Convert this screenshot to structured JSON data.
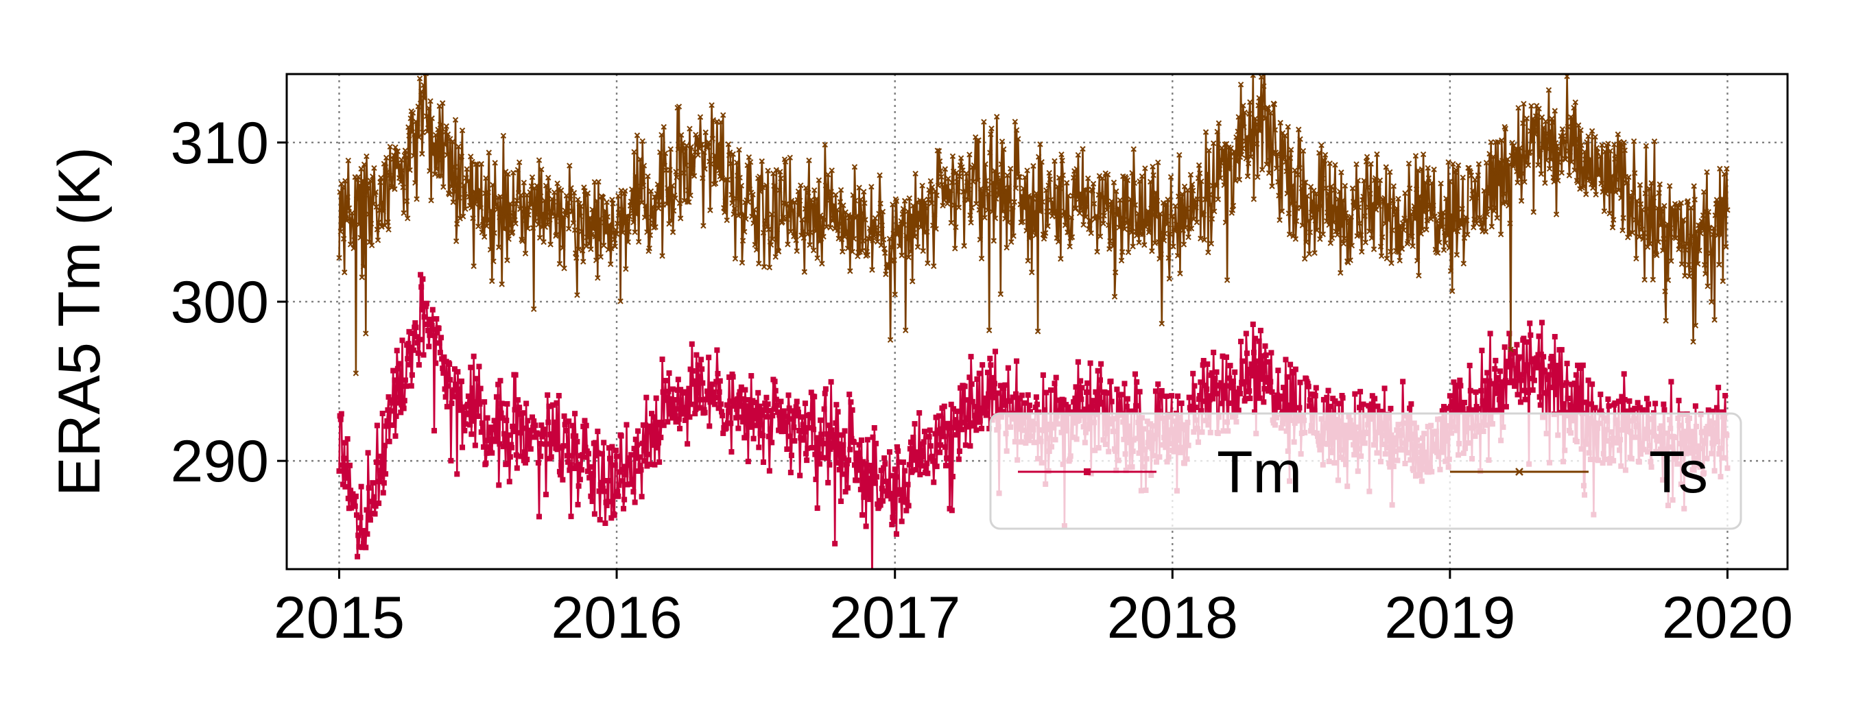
{
  "chart_data": {
    "type": "line",
    "title": "",
    "xlabel": "",
    "ylabel": "ERA5 Tm (K)",
    "x_range": [
      "2015-01-01",
      "2020-01-01"
    ],
    "xlim": [
      "2014-10-24",
      "2020-03-20"
    ],
    "ylim": [
      283.2,
      314.3
    ],
    "x_ticks": [
      "2015",
      "2016",
      "2017",
      "2018",
      "2019",
      "2020"
    ],
    "y_ticks": [
      290,
      300,
      310
    ],
    "grid": true,
    "legend_position": "lower-right",
    "series": [
      {
        "name": "Tm",
        "color": "#C8003C",
        "marker": "square",
        "keypoints": [
          [
            "2015-01-01",
            292.0
          ],
          [
            "2015-02-01",
            285.0
          ],
          [
            "2015-03-01",
            291.0
          ],
          [
            "2015-04-01",
            297.0
          ],
          [
            "2015-04-25",
            299.4
          ],
          [
            "2015-05-20",
            296.0
          ],
          [
            "2015-06-20",
            293.0
          ],
          [
            "2015-08-01",
            292.0
          ],
          [
            "2015-10-01",
            292.0
          ],
          [
            "2015-12-01",
            290.0
          ],
          [
            "2016-01-01",
            289.0
          ],
          [
            "2016-02-01",
            291.0
          ],
          [
            "2016-03-01",
            293.0
          ],
          [
            "2016-04-15",
            295.0
          ],
          [
            "2016-06-15",
            293.0
          ],
          [
            "2016-08-01",
            292.0
          ],
          [
            "2016-10-01",
            292.0
          ],
          [
            "2016-12-01",
            289.0
          ],
          [
            "2017-01-01",
            288.0
          ],
          [
            "2017-02-01",
            290.0
          ],
          [
            "2017-04-01",
            293.0
          ],
          [
            "2017-05-15",
            294.0
          ],
          [
            "2017-07-01",
            292.5
          ],
          [
            "2017-10-01",
            293.0
          ],
          [
            "2017-12-01",
            292.0
          ],
          [
            "2018-01-01",
            292.0
          ],
          [
            "2018-03-01",
            294.0
          ],
          [
            "2018-04-15",
            296.0
          ],
          [
            "2018-06-01",
            294.0
          ],
          [
            "2018-08-01",
            292.0
          ],
          [
            "2018-10-01",
            292.0
          ],
          [
            "2018-12-01",
            290.0
          ],
          [
            "2019-01-01",
            292.0
          ],
          [
            "2019-03-15",
            295.0
          ],
          [
            "2019-04-15",
            296.0
          ],
          [
            "2019-06-01",
            294.0
          ],
          [
            "2019-08-01",
            292.0
          ],
          [
            "2019-10-01",
            292.0
          ],
          [
            "2019-12-01",
            291.0
          ],
          [
            "2020-01-01",
            292.5
          ]
        ],
        "noise": 1.4,
        "spikes": [
          [
            "2015-01-27",
            284.6
          ],
          [
            "2015-02-12",
            286.7
          ],
          [
            "2015-02-28",
            288.0
          ],
          [
            "2015-04-20",
            299.5
          ],
          [
            "2016-01-10",
            287.0
          ],
          [
            "2016-01-25",
            287.4
          ],
          [
            "2016-12-12",
            287.5
          ],
          [
            "2016-12-28",
            286.0
          ],
          [
            "2017-01-10",
            286.2
          ],
          [
            "2017-03-14",
            287.0
          ],
          [
            "2018-04-01",
            297.5
          ],
          [
            "2019-03-20",
            298.0
          ],
          [
            "2019-10-15",
            287.2
          ],
          [
            "2019-11-05",
            287.0
          ]
        ]
      },
      {
        "name": "Ts",
        "color": "#7B3F00",
        "marker": "x",
        "keypoints": [
          [
            "2015-01-01",
            305.0
          ],
          [
            "2015-02-15",
            306.0
          ],
          [
            "2015-04-01",
            309.5
          ],
          [
            "2015-05-05",
            311.8
          ],
          [
            "2015-06-05",
            308.0
          ],
          [
            "2015-07-15",
            306.0
          ],
          [
            "2015-10-01",
            306.0
          ],
          [
            "2015-12-15",
            305.0
          ],
          [
            "2016-02-01",
            306.0
          ],
          [
            "2016-04-01",
            308.5
          ],
          [
            "2016-04-25",
            310.5
          ],
          [
            "2016-06-15",
            306.5
          ],
          [
            "2016-09-01",
            306.0
          ],
          [
            "2016-11-01",
            305.5
          ],
          [
            "2017-01-01",
            304.0
          ],
          [
            "2017-03-01",
            306.0
          ],
          [
            "2017-05-01",
            308.0
          ],
          [
            "2017-07-01",
            306.0
          ],
          [
            "2017-10-01",
            306.0
          ],
          [
            "2018-01-01",
            305.0
          ],
          [
            "2018-03-01",
            308.0
          ],
          [
            "2018-05-01",
            311.0
          ],
          [
            "2018-06-15",
            307.0
          ],
          [
            "2018-09-01",
            305.5
          ],
          [
            "2018-12-01",
            306.0
          ],
          [
            "2019-02-01",
            306.0
          ],
          [
            "2019-04-01",
            309.5
          ],
          [
            "2019-05-15",
            310.0
          ],
          [
            "2019-07-15",
            308.0
          ],
          [
            "2019-09-01",
            306.5
          ],
          [
            "2019-11-01",
            304.0
          ],
          [
            "2019-12-15",
            304.0
          ],
          [
            "2020-01-01",
            305.0
          ]
        ],
        "noise": 1.7,
        "spikes": [
          [
            "2015-01-23",
            295.5
          ],
          [
            "2015-02-05",
            298.0
          ],
          [
            "2015-05-01",
            312.6
          ],
          [
            "2016-04-20",
            311.6
          ],
          [
            "2016-12-26",
            297.6
          ],
          [
            "2017-01-15",
            298.2
          ],
          [
            "2017-04-28",
            311.3
          ],
          [
            "2017-05-05",
            298.2
          ],
          [
            "2018-04-25",
            312.8
          ],
          [
            "2019-03-22",
            297.0
          ],
          [
            "2019-04-18",
            312.3
          ],
          [
            "2019-10-12",
            298.8
          ],
          [
            "2019-11-20",
            298.5
          ]
        ]
      }
    ]
  }
}
